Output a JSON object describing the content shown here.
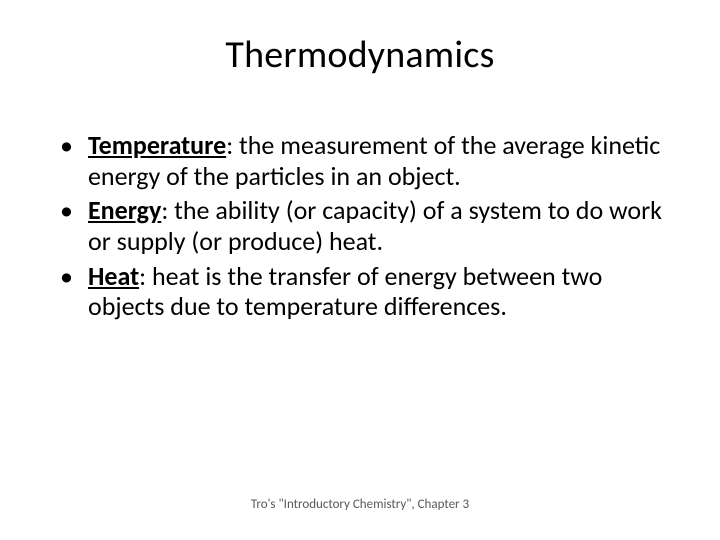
{
  "title": "Thermodynamics",
  "bullets": [
    {
      "term": "Temperature",
      "def": ": the measurement of the average kinetic energy of the particles in an object."
    },
    {
      "term": "Energy",
      "def": ": the ability (or capacity) of a system to do work or supply (or produce) heat."
    },
    {
      "term": "Heat",
      "def": ": heat is the transfer of energy between two objects due to temperature differences."
    }
  ],
  "footer": "Tro's \"Introductory Chemistry\", Chapter 3",
  "colors": {
    "text": "#000000",
    "footer": "#595959",
    "background": "#ffffff"
  },
  "fontsize": {
    "title": 38,
    "body": 26,
    "footer": 13
  }
}
